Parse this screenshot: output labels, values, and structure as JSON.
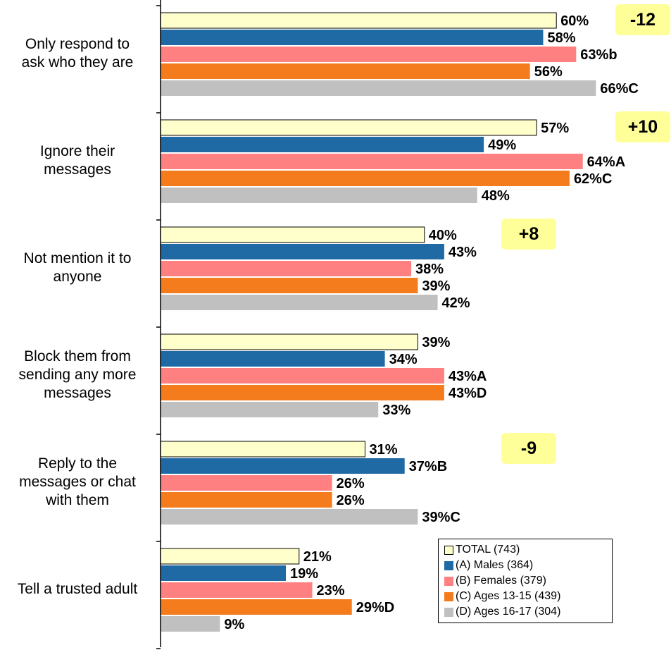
{
  "chart_data": {
    "type": "bar",
    "orientation": "horizontal",
    "xlim": [
      0,
      100
    ],
    "categories": [
      "Only respond to\nask who they are",
      "Ignore their\nmessages",
      "Not mention it to\nanyone",
      "Block them from\nsending any more\nmessages",
      "Reply to the\nmessages or chat\nwith them",
      "Tell a trusted adult"
    ],
    "series": [
      {
        "name": "TOTAL (743)",
        "color": "#ffffcc",
        "values": [
          60,
          57,
          40,
          39,
          31,
          21
        ],
        "sig": [
          "",
          "",
          "",
          "",
          "",
          ""
        ]
      },
      {
        "name": "(A) Males (364)",
        "color": "#1f6aa5",
        "values": [
          58,
          49,
          43,
          34,
          37,
          19
        ],
        "sig": [
          "",
          "",
          "",
          "",
          "B",
          ""
        ]
      },
      {
        "name": "(B) Females (379)",
        "color": "#ff8080",
        "values": [
          63,
          64,
          38,
          43,
          26,
          23
        ],
        "sig": [
          "b",
          "A",
          "",
          "A",
          "",
          ""
        ]
      },
      {
        "name": "(C) Ages 13-15 (439)",
        "color": "#f47c1c",
        "values": [
          56,
          62,
          39,
          43,
          26,
          29
        ],
        "sig": [
          "",
          "C",
          "",
          "D",
          "",
          "D"
        ]
      },
      {
        "name": "(D) Ages 16-17 (304)",
        "color": "#c0c0c0",
        "values": [
          66,
          48,
          42,
          33,
          39,
          9
        ],
        "sig": [
          "C",
          "",
          "",
          "",
          "C",
          ""
        ]
      }
    ],
    "differences": [
      "-12",
      "+10",
      "+8",
      "",
      "-9",
      ""
    ],
    "legend_position": "bottom-right",
    "grid": false
  }
}
